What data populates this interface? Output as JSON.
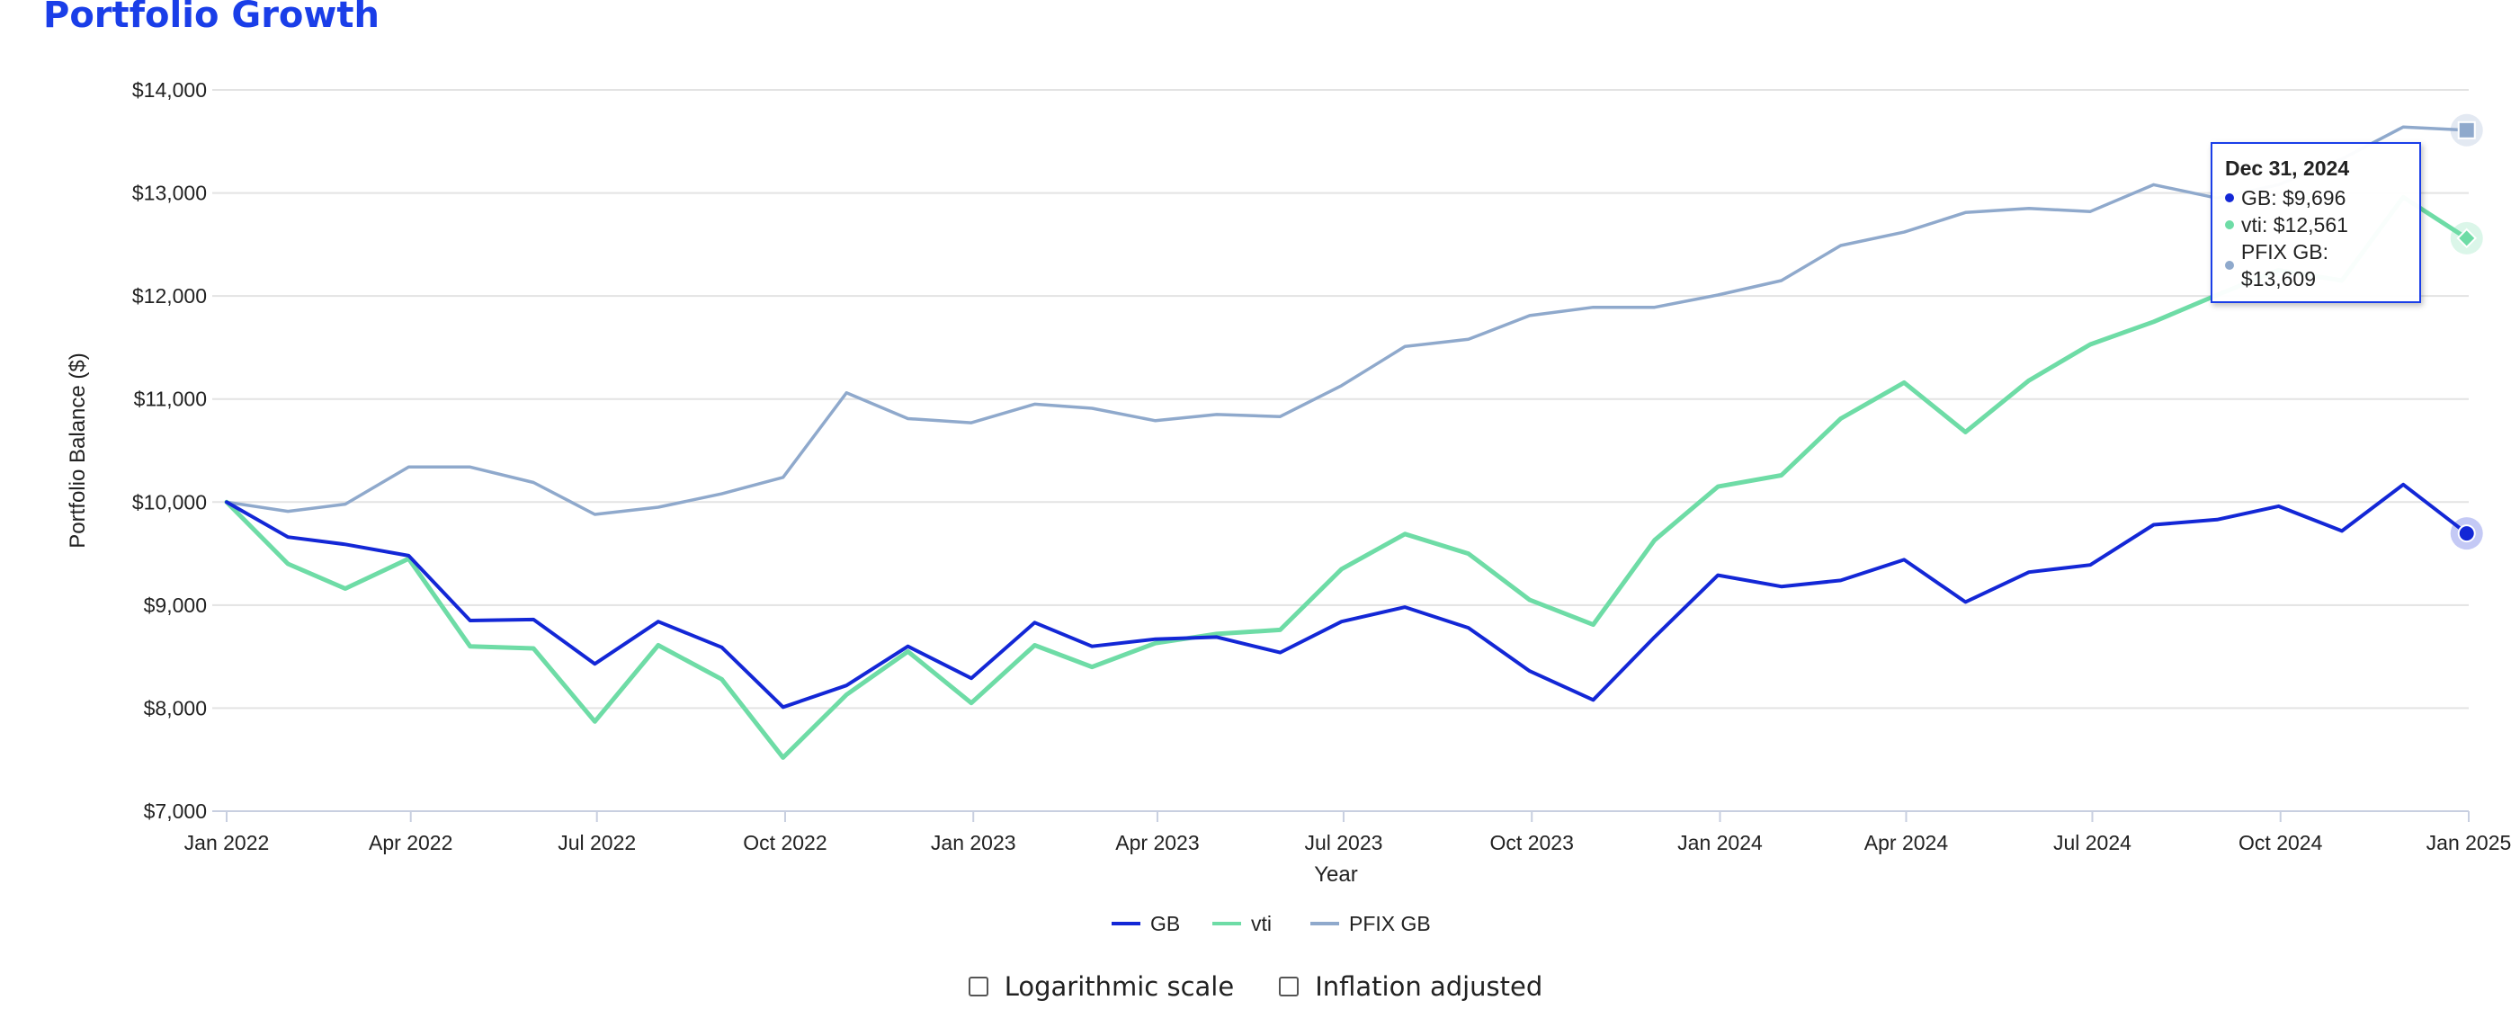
{
  "page": {
    "title": "Portfolio Growth"
  },
  "colors": {
    "title": "#1a3ee8",
    "GB": "#1327d6",
    "vti": "#6edca6",
    "PFIX GB": "#8fa9cc",
    "grid": "#e3e3e3"
  },
  "chart_data": {
    "type": "line",
    "title": "Portfolio Growth",
    "xlabel": "Year",
    "ylabel": "Portfolio Balance ($)",
    "ylim": [
      7000,
      14000
    ],
    "yticks": [
      7000,
      8000,
      9000,
      10000,
      11000,
      12000,
      13000,
      14000
    ],
    "ytick_labels": [
      "$7,000",
      "$8,000",
      "$9,000",
      "$10,000",
      "$11,000",
      "$12,000",
      "$13,000",
      "$14,000"
    ],
    "xrange": [
      "2022-01-01",
      "2025-01-01"
    ],
    "xticks": [
      "2022-01-01",
      "2022-04-01",
      "2022-07-01",
      "2022-10-01",
      "2023-01-01",
      "2023-04-01",
      "2023-07-01",
      "2023-10-01",
      "2024-01-01",
      "2024-04-01",
      "2024-07-01",
      "2024-10-01",
      "2025-01-01"
    ],
    "xtick_labels": [
      "Jan 2022",
      "Apr 2022",
      "Jul 2022",
      "Oct 2022",
      "Jan 2023",
      "Apr 2023",
      "Jul 2023",
      "Oct 2023",
      "Jan 2024",
      "Apr 2024",
      "Jul 2024",
      "Oct 2024",
      "Jan 2025"
    ],
    "grid": "horizontal",
    "legend_position": "bottom-center",
    "x": [
      "2022-01-01",
      "2022-01-31",
      "2022-02-28",
      "2022-03-31",
      "2022-04-30",
      "2022-05-31",
      "2022-06-30",
      "2022-07-31",
      "2022-08-31",
      "2022-09-30",
      "2022-10-31",
      "2022-11-30",
      "2022-12-31",
      "2023-01-31",
      "2023-02-28",
      "2023-03-31",
      "2023-04-30",
      "2023-05-31",
      "2023-06-30",
      "2023-07-31",
      "2023-08-31",
      "2023-09-30",
      "2023-10-31",
      "2023-11-30",
      "2023-12-31",
      "2024-01-31",
      "2024-02-29",
      "2024-03-31",
      "2024-04-30",
      "2024-05-31",
      "2024-06-30",
      "2024-07-31",
      "2024-08-31",
      "2024-09-30",
      "2024-10-31",
      "2024-11-30",
      "2024-12-31"
    ],
    "series": [
      {
        "name": "GB",
        "color": "#1327d6",
        "values": [
          10000,
          9660,
          9590,
          9480,
          8850,
          8860,
          8430,
          8840,
          8590,
          8010,
          8220,
          8600,
          8290,
          8830,
          8600,
          8670,
          8690,
          8540,
          8840,
          8980,
          8780,
          8360,
          8080,
          8690,
          9290,
          9180,
          9240,
          9440,
          9030,
          9320,
          9390,
          9780,
          9830,
          9960,
          9720,
          10170,
          9696
        ]
      },
      {
        "name": "vti",
        "color": "#6edca6",
        "values": [
          10000,
          9400,
          9160,
          9450,
          8600,
          8580,
          7870,
          8610,
          8280,
          7520,
          8130,
          8550,
          8050,
          8610,
          8400,
          8630,
          8720,
          8760,
          9350,
          9690,
          9500,
          9050,
          8810,
          9630,
          10150,
          10260,
          10810,
          11160,
          10680,
          11180,
          11530,
          11750,
          12010,
          12250,
          12150,
          12960,
          12561
        ]
      },
      {
        "name": "PFIX GB",
        "color": "#8fa9cc",
        "values": [
          10000,
          9910,
          9980,
          10340,
          10340,
          10190,
          9880,
          9950,
          10080,
          10240,
          11060,
          10810,
          10770,
          10950,
          10910,
          10790,
          10850,
          10830,
          11130,
          11510,
          11580,
          11810,
          11890,
          11890,
          12010,
          12150,
          12490,
          12620,
          12810,
          12850,
          12820,
          13080,
          12950,
          13080,
          13330,
          13640,
          13609
        ]
      }
    ],
    "tooltip": {
      "date": "Dec 31, 2024",
      "rows": [
        "GB: $9,696",
        "vti: $12,561",
        "PFIX GB: $13,609"
      ]
    }
  },
  "legend": {
    "items": [
      "GB",
      "vti",
      "PFIX GB"
    ]
  },
  "controls": {
    "log_label": "Logarithmic scale",
    "inflation_label": "Inflation adjusted"
  }
}
